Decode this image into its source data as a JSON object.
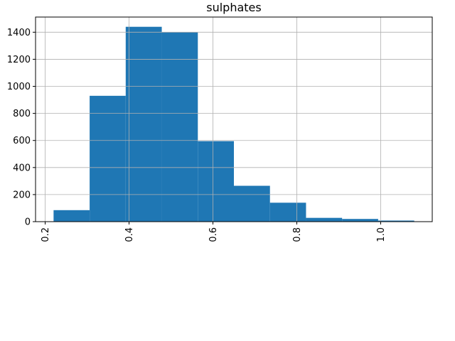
{
  "chart_data": {
    "type": "bar",
    "title": "sulphates",
    "xlabel": "",
    "ylabel": "",
    "bin_edges": [
      0.22,
      0.306,
      0.392,
      0.478,
      0.564,
      0.65,
      0.736,
      0.822,
      0.908,
      0.994,
      1.08
    ],
    "values": [
      85,
      930,
      1440,
      1400,
      595,
      265,
      140,
      28,
      20,
      8
    ],
    "xlim": [
      0.177,
      1.123
    ],
    "ylim": [
      0,
      1512
    ],
    "xticks": [
      {
        "value": 0.2,
        "label": "0.2"
      },
      {
        "value": 0.4,
        "label": "0.4"
      },
      {
        "value": 0.6,
        "label": "0.6"
      },
      {
        "value": 0.8,
        "label": "0.8"
      },
      {
        "value": 1.0,
        "label": "1.0"
      }
    ],
    "yticks": [
      {
        "value": 0,
        "label": "0"
      },
      {
        "value": 200,
        "label": "200"
      },
      {
        "value": 400,
        "label": "400"
      },
      {
        "value": 600,
        "label": "600"
      },
      {
        "value": 800,
        "label": "800"
      },
      {
        "value": 1000,
        "label": "1000"
      },
      {
        "value": 1200,
        "label": "1200"
      },
      {
        "value": 1400,
        "label": "1400"
      }
    ],
    "grid": true,
    "bar_color": "#1f77b4",
    "grid_color": "#b0b0b0"
  }
}
